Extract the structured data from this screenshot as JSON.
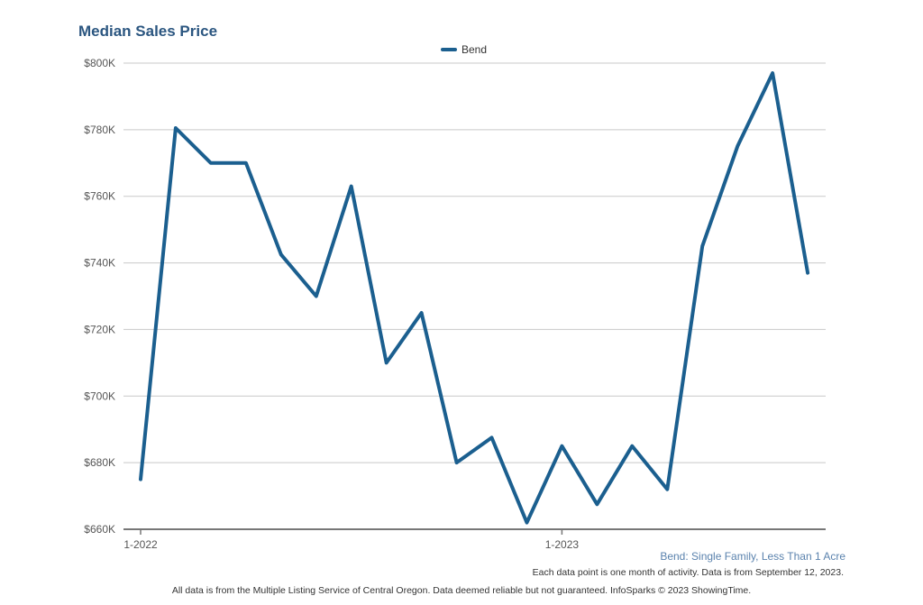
{
  "chart_data": {
    "type": "line",
    "title": "Median Sales Price",
    "legend": [
      "Bend"
    ],
    "series": [
      {
        "name": "Bend",
        "color": "#1b5f8f",
        "values": [
          675000,
          780500,
          770000,
          770000,
          742500,
          730000,
          763000,
          710000,
          725000,
          680000,
          687500,
          662000,
          685000,
          667500,
          685000,
          672000,
          745000,
          775000,
          797000,
          737000
        ]
      }
    ],
    "x_start": "1-2022",
    "x_tick_labels": [
      {
        "index": 0,
        "label": "1-2022"
      },
      {
        "index": 12,
        "label": "1-2023"
      }
    ],
    "ylim": [
      660000,
      800000
    ],
    "y_ticks": [
      {
        "value": 660000,
        "label": "$660K"
      },
      {
        "value": 680000,
        "label": "$680K"
      },
      {
        "value": 700000,
        "label": "$700K"
      },
      {
        "value": 720000,
        "label": "$720K"
      },
      {
        "value": 740000,
        "label": "$740K"
      },
      {
        "value": 760000,
        "label": "$760K"
      },
      {
        "value": 780000,
        "label": "$780K"
      },
      {
        "value": 800000,
        "label": "$800K"
      }
    ],
    "grid": true,
    "legend_position": "top-center"
  },
  "subtitle": "Bend: Single Family, Less Than 1 Acre",
  "note": "Each data point is one month of activity. Data is from September 12, 2023.",
  "footer": "All data is from the Multiple Listing Service of Central Oregon. Data deemed reliable but not guaranteed. InfoSparks © 2023 ShowingTime."
}
